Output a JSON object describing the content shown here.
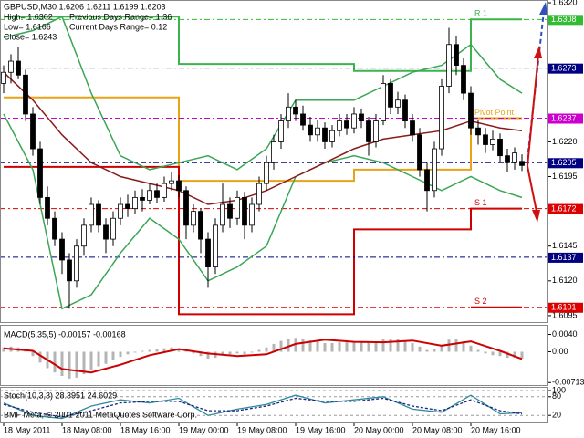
{
  "chart_data": [
    {
      "type": "candlestick",
      "title": "GBPUSD,M30  1.6206 1.6211 1.6199 1.6203",
      "info": [
        "High= 1.6302",
        "Low= 1.6166",
        "Close= 1.6243"
      ],
      "info_right": [
        "Previous Days Range= 1.36",
        "Current Days Range= 0.12"
      ],
      "categories": [
        "18 May 2011",
        null,
        null,
        null,
        null,
        null,
        null,
        null,
        "18 May 08:00",
        null,
        null,
        null,
        null,
        null,
        null,
        null,
        "18 May 16:00",
        null,
        null,
        null,
        null,
        null,
        null,
        null,
        "19 May 00:00",
        null,
        null,
        null,
        null,
        null,
        null,
        null,
        "19 May 08:00",
        null,
        null,
        null,
        null,
        null,
        null,
        null,
        "19 May 16:00",
        null,
        null,
        null,
        null,
        null,
        null,
        null,
        "20 May 00:00",
        null,
        null,
        null,
        null,
        null,
        null,
        null,
        "20 May 08:00",
        null,
        null,
        null,
        null,
        null,
        null,
        null,
        "20 May 16:00",
        null,
        null,
        null,
        null,
        null,
        null,
        null
      ],
      "open": [
        1.6262,
        1.627,
        1.6278,
        1.6268,
        1.624,
        1.6215,
        1.618,
        1.6165,
        1.615,
        1.6135,
        1.612,
        1.6145,
        1.616,
        1.6175,
        1.616,
        1.615,
        1.6165,
        1.6175,
        1.6172,
        1.618,
        1.6178,
        1.6185,
        1.618,
        1.619,
        1.6192,
        1.6185,
        1.616,
        1.617,
        1.615,
        1.613,
        1.616,
        1.6175,
        1.6165,
        1.618,
        1.616,
        1.6175,
        1.619,
        1.6205,
        1.622,
        1.6235,
        1.6245,
        1.624,
        1.6232,
        1.6225,
        1.623,
        1.622,
        1.6228,
        1.6235,
        1.623,
        1.624,
        1.6235,
        1.622,
        1.6235,
        1.6262,
        1.6245,
        1.625,
        1.6235,
        1.6225,
        1.62,
        1.6185,
        1.6215,
        1.626,
        1.629,
        1.6275,
        1.6255,
        1.623,
        1.6225,
        1.6218,
        1.6222,
        1.621,
        1.6205,
        1.6206
      ],
      "high": [
        1.6275,
        1.6283,
        1.6288,
        1.6272,
        1.6245,
        1.622,
        1.6188,
        1.617,
        1.6155,
        1.614,
        1.615,
        1.6165,
        1.618,
        1.6178,
        1.6165,
        1.617,
        1.618,
        1.6182,
        1.6185,
        1.6186,
        1.619,
        1.619,
        1.6195,
        1.6198,
        1.6196,
        1.6188,
        1.6175,
        1.6172,
        1.6155,
        1.6165,
        1.619,
        1.618,
        1.6185,
        1.6184,
        1.618,
        1.6195,
        1.621,
        1.6225,
        1.624,
        1.6255,
        1.625,
        1.6246,
        1.6238,
        1.6236,
        1.6234,
        1.6232,
        1.624,
        1.624,
        1.6245,
        1.6244,
        1.6238,
        1.624,
        1.6268,
        1.6265,
        1.6256,
        1.6254,
        1.624,
        1.623,
        1.6205,
        1.622,
        1.6265,
        1.6302,
        1.6296,
        1.628,
        1.626,
        1.6236,
        1.623,
        1.6228,
        1.6226,
        1.6215,
        1.6216,
        1.6211
      ],
      "low": [
        1.6255,
        1.6262,
        1.6265,
        1.6235,
        1.621,
        1.6175,
        1.616,
        1.6145,
        1.6125,
        1.61,
        1.6115,
        1.6138,
        1.6155,
        1.6155,
        1.614,
        1.6145,
        1.616,
        1.6166,
        1.6168,
        1.617,
        1.6175,
        1.6176,
        1.6177,
        1.6185,
        1.618,
        1.615,
        1.6155,
        1.614,
        1.6115,
        1.6125,
        1.6155,
        1.6158,
        1.616,
        1.615,
        1.6155,
        1.617,
        1.6185,
        1.62,
        1.6215,
        1.623,
        1.6235,
        1.6228,
        1.622,
        1.622,
        1.6215,
        1.6216,
        1.6224,
        1.6225,
        1.6226,
        1.623,
        1.621,
        1.6216,
        1.6232,
        1.624,
        1.624,
        1.623,
        1.622,
        1.6195,
        1.617,
        1.618,
        1.621,
        1.6255,
        1.6268,
        1.625,
        1.6225,
        1.6218,
        1.6212,
        1.6214,
        1.6205,
        1.6198,
        1.62,
        1.6199
      ],
      "close": [
        1.627,
        1.6278,
        1.6268,
        1.624,
        1.6215,
        1.618,
        1.6165,
        1.615,
        1.6135,
        1.612,
        1.6145,
        1.616,
        1.6175,
        1.616,
        1.615,
        1.6165,
        1.6175,
        1.6172,
        1.618,
        1.6178,
        1.6185,
        1.618,
        1.619,
        1.6192,
        1.6185,
        1.616,
        1.617,
        1.615,
        1.613,
        1.616,
        1.6175,
        1.6165,
        1.618,
        1.616,
        1.6175,
        1.619,
        1.6205,
        1.622,
        1.6235,
        1.6245,
        1.624,
        1.6232,
        1.6225,
        1.623,
        1.622,
        1.6228,
        1.6235,
        1.623,
        1.624,
        1.6235,
        1.622,
        1.6235,
        1.6262,
        1.6245,
        1.625,
        1.6235,
        1.6225,
        1.62,
        1.6185,
        1.6215,
        1.626,
        1.629,
        1.6275,
        1.6255,
        1.623,
        1.6225,
        1.6218,
        1.6222,
        1.621,
        1.6205,
        1.6212,
        1.6203
      ],
      "colors": {
        "up": "#ffffff",
        "down": "#000000"
      },
      "lines": [
        {
          "color": "#3aa655",
          "x": [
            0,
            4,
            8,
            12,
            16,
            20,
            24,
            28,
            32,
            36,
            40,
            44,
            48,
            52,
            56,
            60,
            64,
            68,
            71
          ],
          "values": [
            1.6295,
            1.63,
            1.631,
            1.6255,
            1.621,
            1.62,
            1.6205,
            1.621,
            1.62,
            1.6215,
            1.625,
            1.625,
            1.625,
            1.626,
            1.627,
            1.6275,
            1.629,
            1.6265,
            1.6255
          ]
        },
        {
          "color": "#3aa655",
          "x": [
            0,
            4,
            8,
            12,
            16,
            20,
            24,
            28,
            32,
            36,
            40,
            44,
            48,
            52,
            56,
            60,
            64,
            68,
            71
          ],
          "values": [
            1.624,
            1.62,
            1.61,
            1.611,
            1.614,
            1.6165,
            1.615,
            1.612,
            1.613,
            1.6145,
            1.6195,
            1.6205,
            1.621,
            1.6205,
            1.6195,
            1.6185,
            1.6195,
            1.6185,
            1.618
          ]
        },
        {
          "color": "#8b1a1a",
          "x": [
            0,
            4,
            8,
            12,
            16,
            20,
            24,
            28,
            32,
            36,
            40,
            44,
            48,
            52,
            56,
            60,
            64,
            68,
            71
          ],
          "values": [
            1.627,
            1.625,
            1.6225,
            1.6205,
            1.6195,
            1.619,
            1.6185,
            1.6175,
            1.6178,
            1.6185,
            1.6195,
            1.6205,
            1.6215,
            1.6222,
            1.6225,
            1.6228,
            1.6235,
            1.623,
            1.6228
          ]
        }
      ],
      "pivots": [
        {
          "name": "R 1",
          "color": "#3cb44b",
          "x": [
            0,
            24,
            24,
            48,
            48,
            64,
            64,
            71
          ],
          "values": [
            1.631,
            1.631,
            1.6276,
            1.6276,
            1.6271,
            1.6271,
            1.6308,
            1.6308
          ]
        },
        {
          "name": "Pivot Point",
          "color": "#e8a317",
          "x": [
            0,
            24,
            24,
            48,
            48,
            64,
            64,
            71
          ],
          "values": [
            1.6252,
            1.6252,
            1.6192,
            1.6192,
            1.62,
            1.62,
            1.6237,
            1.6237
          ]
        },
        {
          "name": "S 1",
          "color": "#d00000",
          "x": [
            0,
            24,
            24,
            48,
            48,
            64,
            64,
            71
          ],
          "values": [
            1.6202,
            1.6202,
            1.6096,
            1.6096,
            1.6157,
            1.6157,
            1.6172,
            1.6172
          ]
        },
        {
          "name": "S 2",
          "color": "#d00000",
          "x": [
            64,
            71
          ],
          "values": [
            1.6101,
            1.6101
          ]
        }
      ],
      "levels": [
        1.6308,
        1.6273,
        1.6237,
        1.6205,
        1.6172,
        1.6137,
        1.6101
      ],
      "level_colors": [
        "#33bb33",
        "#000080",
        "#cc00cc",
        "#000080",
        "#dd0000",
        "#000080",
        "#dd0000"
      ],
      "ylim": [
        1.6091,
        1.6322
      ],
      "yticks": [
        {
          "value": 1.632,
          "label": "1.6320"
        },
        {
          "value": 1.622,
          "label": "1.6220"
        },
        1.6195,
        1.6145,
        {
          "value": 1.612,
          "label": "1.6120"
        },
        1.6095
      ]
    },
    {
      "type": "macd",
      "title": "MACD(5,35,5) -0.00157 -0.00168",
      "values": [
        0.001,
        0.0012,
        0.001,
        0.0002,
        -0.001,
        -0.0025,
        -0.0038,
        -0.0048,
        -0.0056,
        -0.0062,
        -0.006,
        -0.0052,
        -0.0042,
        -0.0034,
        -0.0028,
        -0.002,
        -0.0012,
        -0.0006,
        -0.0002,
        0.0002,
        0.0004,
        0.0006,
        0.0008,
        0.001,
        0.0008,
        0.0002,
        -0.0004,
        -0.001,
        -0.0016,
        -0.0014,
        -0.0008,
        -0.0006,
        -0.0004,
        -0.0006,
        -0.0002,
        0.0004,
        0.001,
        0.0018,
        0.0025,
        0.003,
        0.0032,
        0.003,
        0.0026,
        0.0024,
        0.002,
        0.002,
        0.0022,
        0.0022,
        0.0024,
        0.0024,
        0.002,
        0.002,
        0.003,
        0.003,
        0.003,
        0.0026,
        0.002,
        0.0012,
        0.0004,
        0.0006,
        0.0016,
        0.0028,
        0.003,
        0.0024,
        0.0014,
        0.0004,
        -0.0004,
        -0.0008,
        -0.001,
        -0.0014,
        -0.0014,
        -0.00157
      ],
      "color": "#b4b4b4",
      "signal": {
        "color": "#cc0000",
        "x": [
          0,
          4,
          8,
          12,
          16,
          20,
          24,
          28,
          32,
          36,
          40,
          44,
          48,
          52,
          56,
          60,
          64,
          68,
          71
        ],
        "values": [
          0.0008,
          0.0002,
          -0.004,
          -0.0048,
          -0.003,
          -0.0008,
          0.0006,
          -0.0004,
          -0.001,
          -0.0006,
          0.0018,
          0.0028,
          0.0023,
          0.0022,
          0.0026,
          0.0014,
          0.0024,
          0.0002,
          -0.00168
        ]
      },
      "ylim": [
        -0.0075,
        0.0058
      ],
      "yticks": [
        {
          "value": 0.004,
          "label": "0.0040"
        },
        {
          "value": 0,
          "label": "0.00"
        },
        -0.00713
      ]
    },
    {
      "type": "line",
      "title": "Stoch(10,3,3) 28.3951 24.6029",
      "note": "BMF Meta, © 2001-2011 MetaQuotes Software Corp.",
      "series": [
        {
          "color": "#2e8b9a",
          "x": [
            0,
            4,
            8,
            12,
            16,
            20,
            24,
            28,
            32,
            36,
            40,
            44,
            48,
            52,
            56,
            60,
            64,
            68,
            71
          ],
          "values": [
            60,
            20,
            10,
            50,
            70,
            60,
            75,
            20,
            40,
            55,
            85,
            60,
            70,
            80,
            40,
            30,
            85,
            25,
            28.3951
          ]
        },
        {
          "color": "#1a237e",
          "dash": true,
          "x": [
            0,
            4,
            8,
            12,
            16,
            20,
            24,
            28,
            32,
            36,
            40,
            44,
            48,
            52,
            56,
            60,
            64,
            68,
            71
          ],
          "values": [
            55,
            30,
            15,
            35,
            60,
            65,
            65,
            35,
            35,
            50,
            75,
            65,
            65,
            75,
            50,
            35,
            70,
            35,
            24.6029
          ]
        }
      ],
      "ylim": [
        0,
        100
      ],
      "yticks": [
        100,
        80,
        20
      ]
    }
  ]
}
